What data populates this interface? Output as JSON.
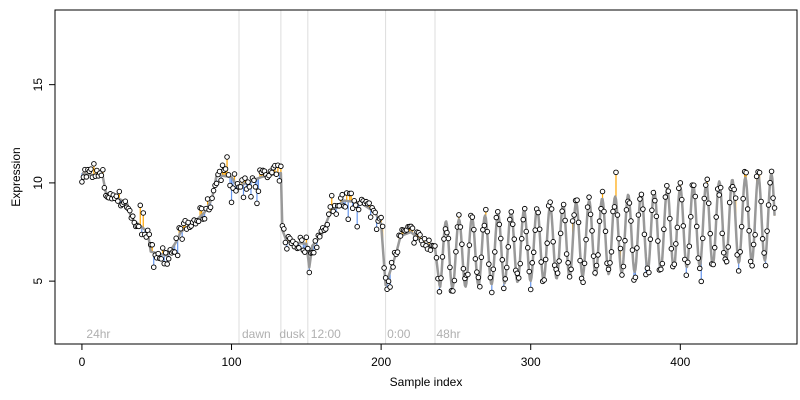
{
  "chart_data": {
    "type": "scatter",
    "xlabel": "Sample index",
    "ylabel": "Expression",
    "xlim": [
      -18,
      478
    ],
    "ylim": [
      1.8,
      18.8
    ],
    "x_ticks": [
      "0",
      "100",
      "200",
      "300",
      "400"
    ],
    "x_tick_values": [
      0,
      100,
      200,
      300,
      400
    ],
    "y_ticks": [
      "5",
      "10",
      "15"
    ],
    "y_tick_values": [
      5,
      10,
      15
    ],
    "n_samples": 464,
    "vertical_lines_at": [
      105,
      133,
      151,
      203,
      236
    ],
    "phase_labels": [
      {
        "label": "24hr",
        "x": 3
      },
      {
        "label": "dawn",
        "x": 107
      },
      {
        "label": "dusk",
        "x": 132
      },
      {
        "label": "12:00",
        "x": 153
      },
      {
        "label": "0:00",
        "x": 204
      },
      {
        "label": "48hr",
        "x": 237
      }
    ],
    "colors": {
      "fit_line": "#999999",
      "residual_positive": "#ffa500",
      "residual_negative": "#6495ed",
      "point_fill": "#ffffff",
      "point_edge": "#000000",
      "gridline": "#dddddd",
      "phase_label": "#b0b0b0"
    },
    "fit_profile": [
      [
        0,
        10.5
      ],
      [
        14,
        10.3
      ],
      [
        16,
        9.5
      ],
      [
        30,
        9.0
      ],
      [
        33,
        8.2
      ],
      [
        44,
        7.5
      ],
      [
        46,
        6.5
      ],
      [
        57,
        6.3
      ],
      [
        63,
        7.0
      ],
      [
        66,
        7.5
      ],
      [
        75,
        8.0
      ],
      [
        82,
        8.5
      ],
      [
        87,
        9.2
      ],
      [
        90,
        10.4
      ],
      [
        100,
        10.3
      ],
      [
        104,
        9.8
      ],
      [
        110,
        10.0
      ],
      [
        120,
        10.3
      ],
      [
        133,
        10.5
      ],
      [
        134,
        7.6
      ],
      [
        137,
        7.0
      ],
      [
        150,
        6.9
      ],
      [
        152,
        5.7
      ],
      [
        154,
        6.8
      ],
      [
        160,
        7.3
      ],
      [
        166,
        8.5
      ],
      [
        175,
        9.1
      ],
      [
        186,
        9.0
      ],
      [
        196,
        8.5
      ],
      [
        200,
        7.9
      ],
      [
        203,
        4.8
      ],
      [
        210,
        6.4
      ],
      [
        213,
        7.3
      ],
      [
        220,
        7.5
      ],
      [
        227,
        7.0
      ],
      [
        236,
        6.7
      ],
      [
        239,
        4.8
      ]
    ],
    "oscillation": {
      "start": 239,
      "end": 464,
      "period": 8.7,
      "phase_at": 239,
      "mean_start": 6.3,
      "mean_end": 8.3,
      "amp_start": 1.7,
      "amp_end": 2.2
    }
  }
}
